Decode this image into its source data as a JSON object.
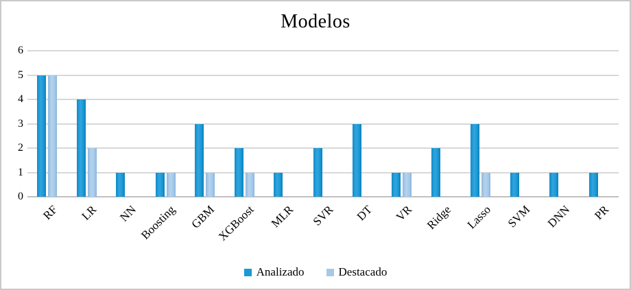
{
  "chart_data": {
    "type": "bar",
    "title": "Modelos",
    "categories": [
      "RF",
      "LR",
      "NN",
      "Boosting",
      "GBM",
      "XGBoost",
      "MLR",
      "SVR",
      "DT",
      "VR",
      "Ridge",
      "Lasso",
      "SVM",
      "DNN",
      "PR"
    ],
    "series": [
      {
        "name": "Analizado",
        "color": "#1b99d5",
        "values": [
          5,
          4,
          1,
          1,
          3,
          2,
          1,
          2,
          3,
          1,
          2,
          3,
          1,
          1,
          1
        ]
      },
      {
        "name": "Destacado",
        "color": "#a6c9e8",
        "values": [
          5,
          2,
          0,
          1,
          1,
          1,
          0,
          0,
          0,
          1,
          0,
          1,
          0,
          0,
          0
        ]
      }
    ],
    "xlabel": "",
    "ylabel": "",
    "ylim": [
      0,
      6
    ],
    "yticks": [
      0,
      1,
      2,
      3,
      4,
      5,
      6
    ],
    "grid": true,
    "legend_position": "bottom",
    "colors": {
      "gridline": "#d8d8d8",
      "axis_line": "#c0c0c0",
      "frame_border": "#c9c9c9",
      "text": "#000000"
    }
  }
}
